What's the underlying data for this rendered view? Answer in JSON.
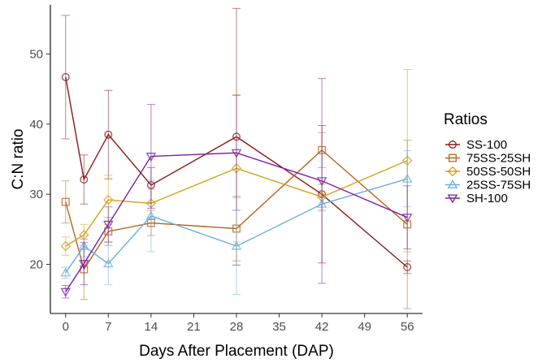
{
  "chart_data": {
    "type": "line",
    "xlabel": "Days After Placement (DAP)",
    "ylabel": "C:N ratio",
    "xlim": [
      -2.5,
      58.5
    ],
    "ylim": [
      13,
      57
    ],
    "xticks": [
      0,
      7,
      14,
      21,
      28,
      35,
      42,
      49,
      56
    ],
    "yticks": [
      20,
      30,
      40,
      50
    ],
    "grid": false,
    "legend": {
      "title": "Ratios",
      "placement": "right"
    },
    "x": [
      0,
      3,
      7,
      14,
      28,
      42,
      56
    ],
    "series": [
      {
        "name": "SS-100",
        "color": "#8b1a1a",
        "marker": "circle",
        "values": [
          46.7,
          32.1,
          38.5,
          31.3,
          38.2,
          30.0,
          19.6
        ],
        "err": [
          8.8,
          3.5,
          6.3,
          2.5,
          18.3,
          9.8,
          0.9
        ]
      },
      {
        "name": "75SS-25SH",
        "color": "#b5651d",
        "marker": "square",
        "values": [
          28.9,
          19.3,
          24.7,
          25.9,
          25.1,
          36.3,
          25.7
        ],
        "err": [
          3.0,
          4.3,
          2.0,
          1.8,
          4.6,
          2.5,
          12.0
        ]
      },
      {
        "name": "50SS-50SH",
        "color": "#d4a017",
        "marker": "diamond",
        "values": [
          22.6,
          24.2,
          29.2,
          28.7,
          33.7,
          29.6,
          34.8
        ],
        "err": [
          1.3,
          1.5,
          3.5,
          2.0,
          10.5,
          1.8,
          13.0
        ]
      },
      {
        "name": "25SS-75SH",
        "color": "#6ab0de",
        "marker": "triangle-up",
        "values": [
          18.8,
          22.6,
          20.1,
          26.9,
          22.6,
          28.6,
          32.2
        ],
        "err": [
          0.8,
          1.5,
          3.0,
          5.1,
          6.9,
          1.0,
          4.0
        ]
      },
      {
        "name": "SH-100",
        "color": "#7a1fa2",
        "marker": "triangle-down",
        "values": [
          16.1,
          20.1,
          25.7,
          35.4,
          35.9,
          31.9,
          26.7
        ],
        "err": [
          0.9,
          3.0,
          2.5,
          7.4,
          8.2,
          14.6,
          4.5
        ]
      }
    ]
  }
}
